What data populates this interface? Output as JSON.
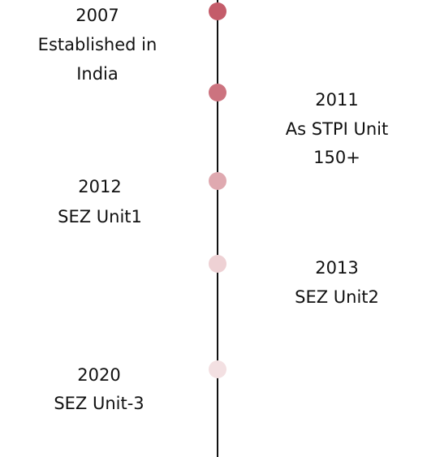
{
  "milestones": [
    {
      "year": "2007",
      "description": [
        "Established in",
        "India"
      ]
    },
    {
      "year": "2011",
      "description": [
        "As STPI Unit",
        "150+"
      ]
    },
    {
      "year": "2012",
      "description": [
        "SEZ Unit1"
      ]
    },
    {
      "year": "2013",
      "description": [
        "SEZ Unit2"
      ]
    },
    {
      "year": "2020",
      "description": [
        "SEZ Unit-3"
      ]
    }
  ]
}
